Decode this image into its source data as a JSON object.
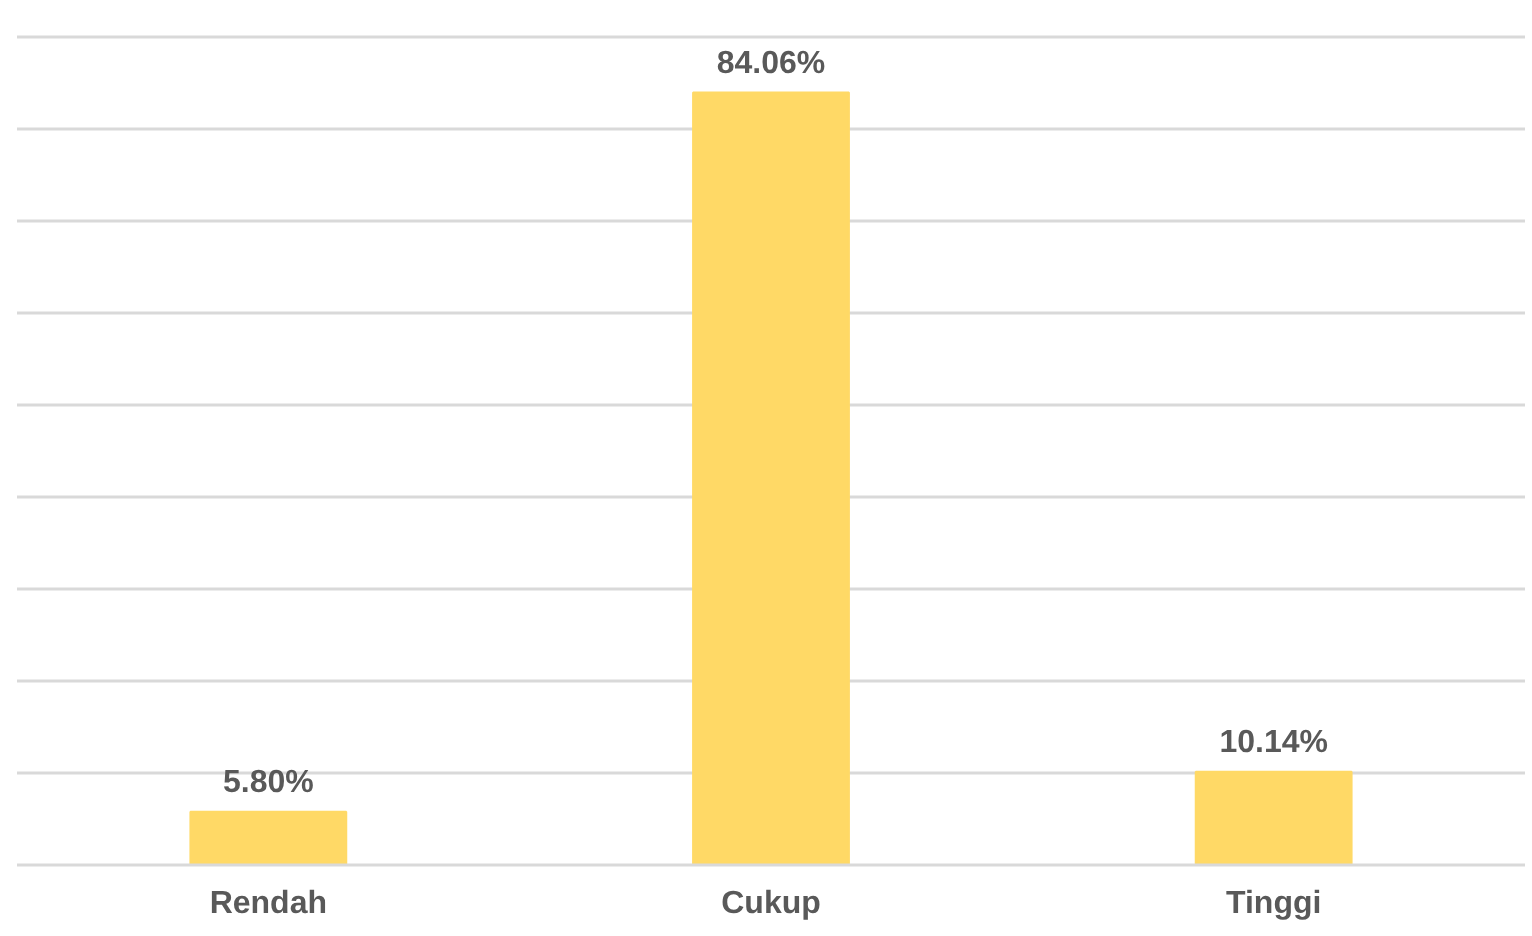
{
  "chart_data": {
    "type": "bar",
    "categories": [
      "Rendah",
      "Cukup",
      "Tinggi"
    ],
    "values": [
      5.8,
      84.06,
      10.14
    ],
    "value_labels": [
      "5.80%",
      "84.06%",
      "10.14%"
    ],
    "color": "#ffd966",
    "ylim": [
      0,
      90
    ],
    "yticks": [
      {
        "value": 0,
        "label": null
      },
      {
        "value": 10,
        "label": null
      },
      {
        "value": 20,
        "label": null
      },
      {
        "value": 30,
        "label": null
      },
      {
        "value": 40,
        "label": null
      },
      {
        "value": 50,
        "label": null
      },
      {
        "value": 60,
        "label": null
      },
      {
        "value": 70,
        "label": null
      },
      {
        "value": 80,
        "label": null
      },
      {
        "value": 90,
        "label": null
      }
    ],
    "grid": "y",
    "tick_labels": "x"
  }
}
